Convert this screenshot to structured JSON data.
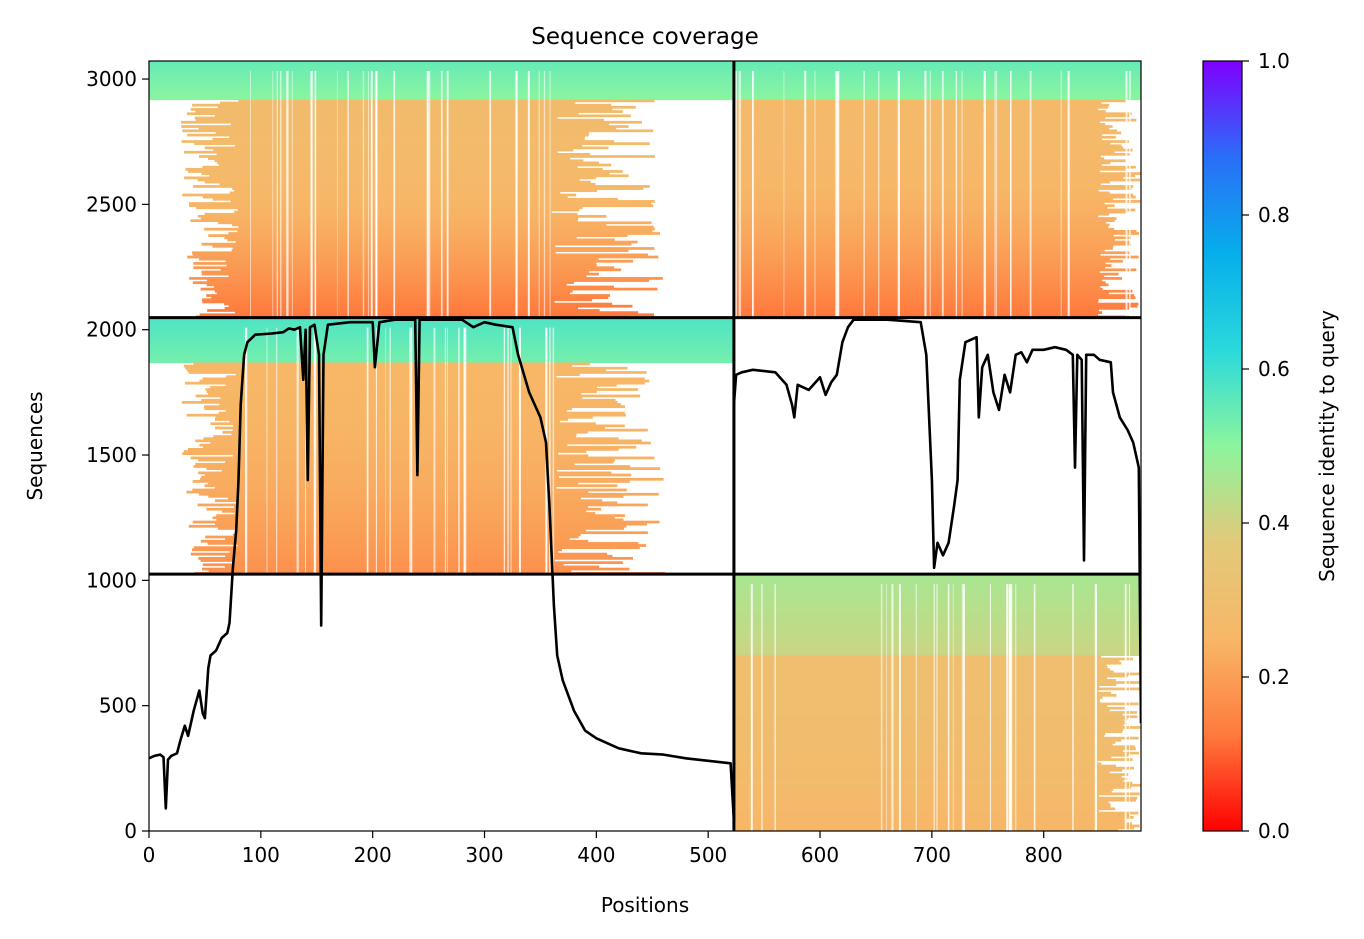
{
  "chart_data": {
    "type": "heatmap",
    "title": "Sequence coverage",
    "xlabel": "Positions",
    "ylabel": "Sequences",
    "colorbar_label": "Sequence identity to query",
    "xlim": [
      0,
      887
    ],
    "ylim": [
      0,
      3072
    ],
    "x_ticks": [
      0,
      100,
      200,
      300,
      400,
      500,
      600,
      700,
      800
    ],
    "y_ticks": [
      0,
      500,
      1000,
      1500,
      2000,
      2500,
      3000
    ],
    "colorbar_ticks": [
      0.0,
      0.2,
      0.4,
      0.6,
      0.8,
      1.0
    ],
    "colorbar_tick_labels": [
      "0.0",
      "0.2",
      "0.4",
      "0.6",
      "0.8",
      "1.0"
    ],
    "colormap": "rainbow",
    "colormap_stops": [
      "#ff0000",
      "#ff7a3d",
      "#f7b767",
      "#e2c97a",
      "#8cf59e",
      "#2ad9dc",
      "#06aeeb",
      "#2a6ef8",
      "#7f00ff"
    ],
    "chain_boundaries_x": [
      523
    ],
    "block_boundaries_y": [
      1025,
      2048
    ],
    "blocks": [
      {
        "x0": 0,
        "x1": 523,
        "y0": 2048,
        "y1": 3072,
        "fill_x": [
          80,
          360
        ],
        "identity_top": 0.55,
        "identity_body": 0.28,
        "identity_bottom": 0.12,
        "head_rows": 160
      },
      {
        "x0": 523,
        "x1": 887,
        "y0": 2048,
        "y1": 3072,
        "fill_x": [
          523,
          887
        ],
        "identity_top": 0.55,
        "identity_body": 0.27,
        "identity_bottom": 0.12,
        "head_rows": 160
      },
      {
        "x0": 0,
        "x1": 523,
        "y0": 1025,
        "y1": 2048,
        "fill_x": [
          80,
          362
        ],
        "identity_top": 0.58,
        "identity_body": 0.25,
        "identity_bottom": 0.17,
        "head_rows": 180
      },
      {
        "x0": 523,
        "x1": 887,
        "y0": 0,
        "y1": 1025,
        "fill_x": [
          523,
          887
        ],
        "identity_top": 0.46,
        "identity_body": 0.3,
        "identity_bottom": 0.25,
        "head_rows": 330
      }
    ],
    "coverage_line": {
      "name": "coverage",
      "color": "#000000",
      "points": [
        [
          0,
          290
        ],
        [
          5,
          300
        ],
        [
          10,
          305
        ],
        [
          13,
          295
        ],
        [
          15,
          90
        ],
        [
          17,
          285
        ],
        [
          20,
          300
        ],
        [
          25,
          310
        ],
        [
          28,
          360
        ],
        [
          32,
          420
        ],
        [
          35,
          380
        ],
        [
          40,
          480
        ],
        [
          45,
          560
        ],
        [
          48,
          470
        ],
        [
          50,
          450
        ],
        [
          53,
          650
        ],
        [
          55,
          700
        ],
        [
          60,
          720
        ],
        [
          65,
          770
        ],
        [
          70,
          790
        ],
        [
          72,
          830
        ],
        [
          75,
          1050
        ],
        [
          78,
          1200
        ],
        [
          80,
          1400
        ],
        [
          82,
          1700
        ],
        [
          85,
          1900
        ],
        [
          88,
          1950
        ],
        [
          95,
          1980
        ],
        [
          110,
          1985
        ],
        [
          120,
          1990
        ],
        [
          125,
          2005
        ],
        [
          130,
          2000
        ],
        [
          135,
          2010
        ],
        [
          138,
          1800
        ],
        [
          140,
          2000
        ],
        [
          142,
          1400
        ],
        [
          144,
          2010
        ],
        [
          148,
          2020
        ],
        [
          152,
          1900
        ],
        [
          154,
          820
        ],
        [
          156,
          1900
        ],
        [
          160,
          2020
        ],
        [
          180,
          2030
        ],
        [
          200,
          2030
        ],
        [
          202,
          1850
        ],
        [
          206,
          2030
        ],
        [
          220,
          2040
        ],
        [
          238,
          2040
        ],
        [
          240,
          1420
        ],
        [
          242,
          2040
        ],
        [
          260,
          2040
        ],
        [
          280,
          2040
        ],
        [
          290,
          2010
        ],
        [
          300,
          2030
        ],
        [
          310,
          2020
        ],
        [
          325,
          2010
        ],
        [
          330,
          1900
        ],
        [
          340,
          1750
        ],
        [
          350,
          1650
        ],
        [
          355,
          1550
        ],
        [
          358,
          1300
        ],
        [
          362,
          900
        ],
        [
          365,
          700
        ],
        [
          370,
          600
        ],
        [
          380,
          480
        ],
        [
          390,
          400
        ],
        [
          400,
          370
        ],
        [
          420,
          330
        ],
        [
          440,
          310
        ],
        [
          460,
          305
        ],
        [
          480,
          290
        ],
        [
          500,
          280
        ],
        [
          520,
          270
        ],
        [
          523,
          40
        ],
        [
          523,
          1700
        ],
        [
          525,
          1820
        ],
        [
          530,
          1830
        ],
        [
          540,
          1840
        ],
        [
          560,
          1830
        ],
        [
          570,
          1780
        ],
        [
          575,
          1700
        ],
        [
          577,
          1650
        ],
        [
          580,
          1780
        ],
        [
          590,
          1760
        ],
        [
          600,
          1810
        ],
        [
          605,
          1740
        ],
        [
          610,
          1790
        ],
        [
          615,
          1820
        ],
        [
          620,
          1950
        ],
        [
          625,
          2010
        ],
        [
          630,
          2040
        ],
        [
          660,
          2040
        ],
        [
          690,
          2030
        ],
        [
          695,
          1900
        ],
        [
          700,
          1400
        ],
        [
          702,
          1050
        ],
        [
          705,
          1150
        ],
        [
          710,
          1100
        ],
        [
          715,
          1150
        ],
        [
          720,
          1300
        ],
        [
          723,
          1400
        ],
        [
          725,
          1800
        ],
        [
          730,
          1950
        ],
        [
          740,
          1970
        ],
        [
          742,
          1650
        ],
        [
          745,
          1850
        ],
        [
          750,
          1900
        ],
        [
          755,
          1750
        ],
        [
          760,
          1680
        ],
        [
          765,
          1820
        ],
        [
          770,
          1750
        ],
        [
          775,
          1900
        ],
        [
          780,
          1910
        ],
        [
          785,
          1870
        ],
        [
          790,
          1920
        ],
        [
          800,
          1920
        ],
        [
          810,
          1930
        ],
        [
          820,
          1920
        ],
        [
          826,
          1900
        ],
        [
          828,
          1450
        ],
        [
          830,
          1900
        ],
        [
          834,
          1880
        ],
        [
          836,
          1080
        ],
        [
          838,
          1900
        ],
        [
          845,
          1900
        ],
        [
          850,
          1880
        ],
        [
          860,
          1870
        ],
        [
          862,
          1750
        ],
        [
          868,
          1650
        ],
        [
          875,
          1600
        ],
        [
          880,
          1550
        ],
        [
          885,
          1450
        ],
        [
          887,
          430
        ]
      ]
    }
  }
}
